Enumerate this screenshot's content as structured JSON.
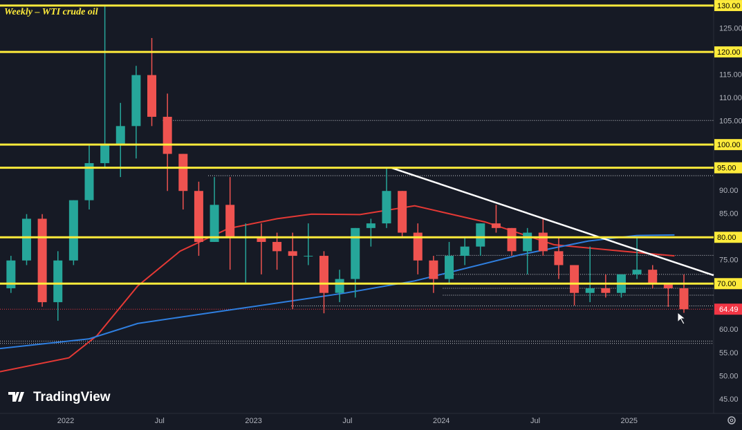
{
  "chart_data": {
    "type": "candlestick",
    "title": "Weekly – WTI crude oil",
    "watermark": "TradingView",
    "up_color": "#26a69a",
    "down_color": "#ef5350",
    "x": [
      -3.5,
      -2.5,
      -1.5,
      -0.5,
      0.5,
      1.5,
      2.5,
      3.5,
      4.5,
      5.5,
      6.5,
      7.5,
      8.5,
      9.5,
      10.5,
      11.5,
      12.5,
      13.5,
      14.5,
      15.5,
      16.5,
      17.5,
      18.5,
      19.5,
      20.5,
      21.5,
      22.5,
      23.5,
      24.5,
      25.5,
      26.5,
      27.5,
      28.5,
      29.5,
      30.5,
      31.5,
      32.5,
      33.5,
      34.5,
      35.5,
      36.5,
      37.5,
      38.5,
      39.5
    ],
    "open": [
      69,
      75,
      84,
      66,
      75,
      88,
      96,
      100,
      104,
      115,
      106,
      98,
      90,
      79,
      87,
      80,
      80,
      79,
      77,
      76,
      76,
      68,
      71,
      82,
      83,
      90,
      81,
      75,
      71,
      76,
      78,
      83,
      82,
      77,
      81,
      77,
      74,
      68,
      69,
      68,
      72,
      73,
      70,
      69
    ],
    "high": [
      76,
      85,
      85,
      77,
      88,
      100,
      130,
      109,
      117,
      123,
      111,
      98,
      92,
      93,
      93,
      83,
      83,
      81,
      81,
      83,
      77,
      73,
      82,
      84,
      95,
      90,
      83,
      76,
      79,
      80,
      83,
      87,
      82,
      82,
      84,
      80,
      74,
      78,
      72,
      72,
      80,
      74,
      70,
      72
    ],
    "low": [
      68,
      74,
      65,
      62,
      74,
      86,
      95,
      93,
      97,
      104,
      90,
      86,
      76,
      79,
      73,
      70,
      72,
      73,
      64.5,
      74,
      63.6,
      66,
      67,
      78,
      82,
      80,
      72,
      68,
      70,
      74,
      76,
      81,
      76,
      72,
      76,
      71,
      65.3,
      66,
      67,
      67,
      71,
      69,
      65,
      63.7
    ],
    "close": [
      75,
      84,
      66,
      75,
      88,
      96,
      100,
      104,
      115,
      106,
      98,
      90,
      79,
      87,
      80,
      80,
      79,
      77,
      76,
      76,
      68,
      71,
      82,
      83,
      90,
      81,
      75,
      71,
      76,
      78,
      83,
      82,
      77,
      81,
      77,
      74,
      68,
      69,
      68,
      72,
      73,
      70,
      69,
      64.49
    ],
    "xlim": [
      -4.2,
      41.4
    ],
    "xticks": [
      {
        "value": 0,
        "label": "2022"
      },
      {
        "value": 6,
        "label": "Jul"
      },
      {
        "value": 12,
        "label": "2023"
      },
      {
        "value": 18,
        "label": "Jul"
      },
      {
        "value": 24,
        "label": "2024"
      },
      {
        "value": 30,
        "label": "Jul"
      },
      {
        "value": 36,
        "label": "2025"
      }
    ],
    "ylim": [
      42,
      131.2
    ],
    "yticks": [
      {
        "value": 45,
        "label": "45.00"
      },
      {
        "value": 50,
        "label": "50.00"
      },
      {
        "value": 55,
        "label": "55.00"
      },
      {
        "value": 60,
        "label": "60.00"
      },
      {
        "value": 75,
        "label": "75.00"
      },
      {
        "value": 85,
        "label": "85.00"
      },
      {
        "value": 90,
        "label": "90.00"
      },
      {
        "value": 105,
        "label": "105.00"
      },
      {
        "value": 110,
        "label": "110.00"
      },
      {
        "value": 115,
        "label": "115.00"
      },
      {
        "value": 125,
        "label": "125.00"
      }
    ],
    "levels_color": "#ffeb3b",
    "levels": [
      {
        "value": 130,
        "label": "130.00"
      },
      {
        "value": 120,
        "label": "120.00"
      },
      {
        "value": 100,
        "label": "100.00"
      },
      {
        "value": 95,
        "label": "95.00"
      },
      {
        "value": 80,
        "label": "80.00"
      },
      {
        "value": 70,
        "label": "70.00"
      }
    ],
    "dotted_levels": [
      {
        "value": 105.2,
        "from": 6.2
      },
      {
        "value": 93.3,
        "from": 9.1
      },
      {
        "value": 76.1,
        "from": 23.7
      },
      {
        "value": 72,
        "from": 23.2
      },
      {
        "value": 69,
        "from": 24.1
      },
      {
        "value": 67.5,
        "from": 24.1
      },
      {
        "value": 65.2,
        "from": 14.4
      },
      {
        "value": 57.6,
        "from": -4.2
      },
      {
        "value": 57.1,
        "from": -4.2
      }
    ],
    "last_price": {
      "value": 64.49,
      "label": "64.49",
      "color": "#f23645"
    },
    "moving_averages": [
      {
        "color": "#e53935",
        "x": [
          -4.2,
          0.2,
          2,
          4.6,
          7.3,
          10.4,
          13.5,
          15.7,
          18.8,
          22.3,
          26.8,
          31.2,
          35.6,
          38.9
        ],
        "values": [
          51,
          54,
          58.8,
          69.5,
          77,
          81.9,
          84,
          85,
          84.9,
          86.8,
          83.3,
          78.4,
          77,
          76
        ]
      },
      {
        "color": "#2f7fe0",
        "x": [
          -4.2,
          1.5,
          4.6,
          9,
          13.5,
          17.9,
          22.3,
          24.6,
          29,
          33.4,
          36.5,
          38.9
        ],
        "values": [
          56,
          58.1,
          61.4,
          63.6,
          65.8,
          68,
          70.6,
          72.5,
          76.2,
          79.2,
          80.4,
          80.5
        ]
      }
    ],
    "trendline": {
      "color": "#ffffff",
      "x": [
        20.8,
        41.4
      ],
      "values": [
        95,
        71.8
      ]
    }
  }
}
